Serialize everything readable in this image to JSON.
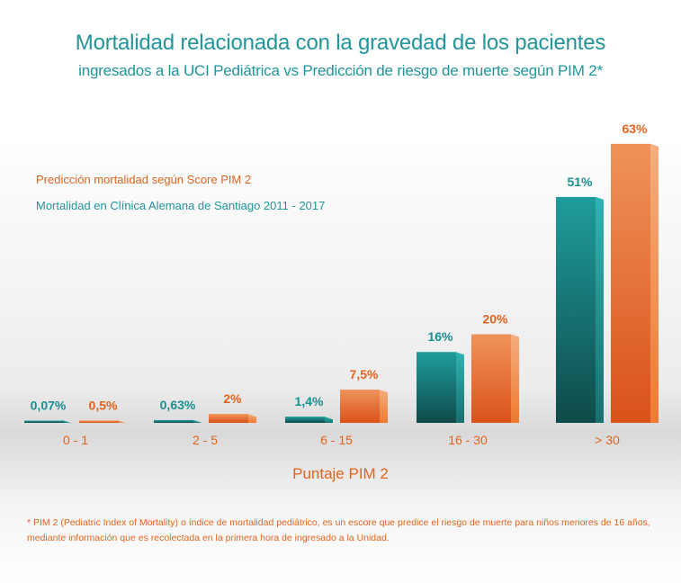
{
  "chart_data": {
    "type": "bar",
    "title": "Mortalidad  relacionada con la gravedad de los pacientes",
    "subtitle": "ingresados a la UCI Pediátrica vs Predicción de riesgo de muerte según PIM 2*",
    "xlabel": "Puntaje PIM 2",
    "ylabel": "",
    "ylim": [
      0,
      65
    ],
    "grid": false,
    "legend_placement": "top-left",
    "categories": [
      "0 - 1",
      "2 - 5",
      "6 - 15",
      "16 - 30",
      "> 30"
    ],
    "series": [
      {
        "name": "Mortalidad en Clínica Alemana de Santiago 2011 - 2017",
        "color": "#1a8f91",
        "values": [
          0.07,
          0.63,
          1.4,
          16,
          51
        ],
        "labels": [
          "0,07%",
          "0,63%",
          "1,4%",
          "16%",
          "51%"
        ]
      },
      {
        "name": "Predicción mortalidad según Score PIM 2",
        "color": "#e8702e",
        "values": [
          0.5,
          2,
          7.5,
          20,
          63
        ],
        "labels": [
          "0,5%",
          "2%",
          "7,5%",
          "20%",
          "63%"
        ]
      }
    ]
  },
  "footnote": "* PIM 2 (Pediatric Index of Mortality) o índice de mortalidad pediátrico, es un escore que predice el riesgo de muerte para niños menores de 16 años, mediante información que es recolectada en la primera hora de ingresado a la Unidad."
}
